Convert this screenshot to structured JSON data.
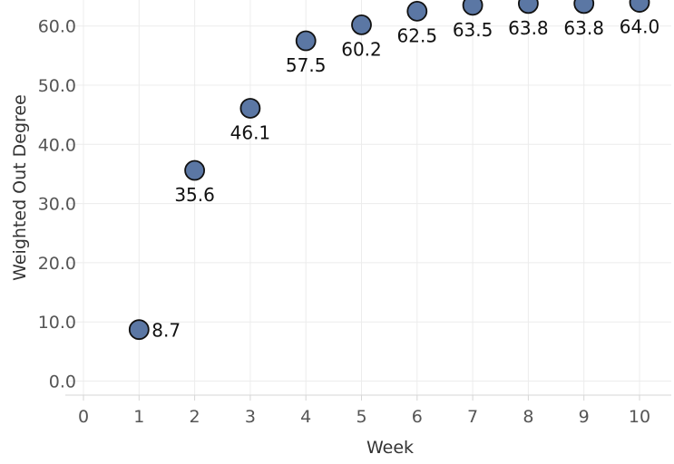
{
  "chart_data": {
    "type": "scatter",
    "xlabel": "Week",
    "ylabel": "Weighted Out Degree",
    "x": [
      1,
      2,
      3,
      4,
      5,
      6,
      7,
      8,
      9,
      10
    ],
    "series": [
      {
        "values": [
          8.7,
          35.6,
          46.1,
          57.5,
          60.2,
          62.5,
          63.5,
          63.8,
          63.8,
          64.0
        ]
      }
    ],
    "data_labels": [
      "8.7",
      "35.6",
      "46.1",
      "57.5",
      "60.2",
      "62.5",
      "63.5",
      "63.8",
      "63.8",
      "64.0"
    ],
    "xlim": [
      0,
      10
    ],
    "ylim": [
      0,
      60
    ],
    "x_ticks": [
      "0",
      "1",
      "2",
      "3",
      "4",
      "5",
      "6",
      "7",
      "8",
      "9",
      "10"
    ],
    "y_ticks": [
      "0.0",
      "10.0",
      "20.0",
      "30.0",
      "40.0",
      "50.0",
      "60.0"
    ],
    "grid": true,
    "marker_color": "#5b77a4",
    "marker_edge_color": "#111111"
  }
}
